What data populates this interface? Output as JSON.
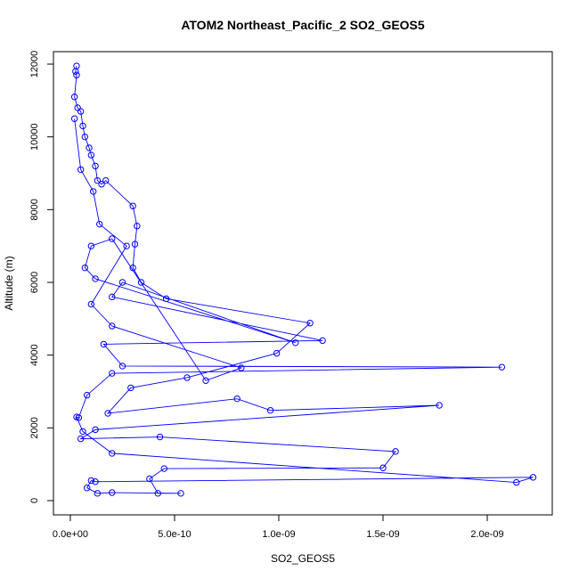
{
  "chart_data": {
    "type": "line",
    "title": "ATOM2 Northeast_Pacific_2 SO2_GEOS5",
    "x_label": "SO2_GEOS5",
    "y_label": "Altitude (m)",
    "color": "#0000ff",
    "markers": true,
    "x": [
      3e-11,
      2.5e-11,
      3e-11,
      2e-11,
      3.5e-11,
      5e-11,
      6e-11,
      7e-11,
      9e-11,
      1e-10,
      1.2e-10,
      1.3e-10,
      1.5e-10,
      1.7e-10,
      3e-10,
      3.2e-10,
      3.1e-10,
      3e-10,
      3.4e-10,
      4.6e-10,
      1.15e-09,
      9.9e-10,
      5.6e-10,
      2.9e-10,
      1.8e-10,
      8e-10,
      9.6e-10,
      1.77e-09,
      1.2e-10,
      5e-11,
      4.3e-10,
      1.56e-09,
      1.5e-09,
      4.5e-10,
      3.8e-10,
      4.2e-10,
      5.3e-10,
      2e-10,
      1.3e-10,
      8e-11,
      1e-10,
      1.2e-10,
      2.22e-09,
      2.14e-09,
      2e-10,
      6e-11,
      3e-11,
      4e-11,
      8e-11,
      2e-10,
      2.07e-09,
      2.5e-10,
      1.6e-10,
      1.21e-09,
      2e-10,
      2.5e-10,
      1.08e-09,
      1.2e-10,
      7e-11,
      1e-10,
      2e-10,
      6.5e-10,
      8.2e-10,
      2e-10,
      1e-10,
      2.7e-10,
      1.4e-10,
      1.1e-10,
      5e-11,
      2e-11
    ],
    "values": [
      11950,
      11800,
      11700,
      11100,
      10800,
      10700,
      10300,
      10000,
      9700,
      9500,
      9200,
      8800,
      8700,
      8800,
      8100,
      7550,
      7050,
      6400,
      6000,
      5550,
      4880,
      4050,
      3380,
      3100,
      2400,
      2800,
      2480,
      2620,
      1950,
      1700,
      1750,
      1350,
      900,
      880,
      600,
      200,
      200,
      220,
      200,
      350,
      550,
      520,
      640,
      500,
      1300,
      1900,
      2300,
      2280,
      2900,
      3500,
      3670,
      3700,
      4300,
      4400,
      5600,
      6000,
      4340,
      6100,
      6400,
      7000,
      7200,
      3300,
      3650,
      4800,
      5400,
      7000,
      7600,
      8500,
      9100,
      10500
    ],
    "xlim": [
      -8.1e-11,
      2.312e-09
    ],
    "ylim": [
      -392,
      12343
    ],
    "xticks": [
      {
        "value": 0,
        "label": "0.0e+00"
      },
      {
        "value": 5e-10,
        "label": "5.0e-10"
      },
      {
        "value": 1e-09,
        "label": "1.0e-09"
      },
      {
        "value": 1.5e-09,
        "label": "1.5e-09"
      },
      {
        "value": 2e-09,
        "label": "2.0e-09"
      }
    ],
    "yticks": [
      0,
      2000,
      4000,
      6000,
      8000,
      10000,
      12000
    ],
    "grid": false
  }
}
